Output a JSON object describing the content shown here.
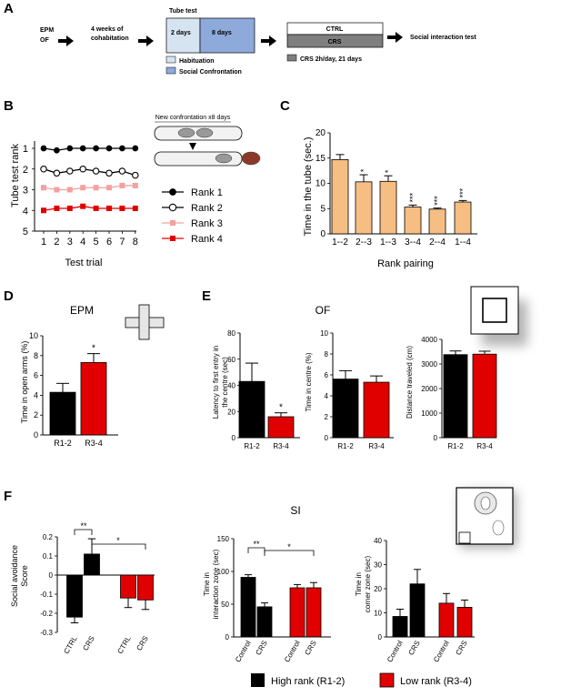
{
  "colors": {
    "black": "#000000",
    "red": "#e00000",
    "orange": "#f6be82",
    "pink": "#f4a0a0",
    "lightblue": "#d6e4f2",
    "blue": "#8eaadb",
    "darkgray": "#7f7f7f"
  },
  "panelA": {
    "letter": "A",
    "step1": [
      "EPM",
      "OF"
    ],
    "step2": [
      "4 weeks of",
      "cohabitation"
    ],
    "tube_title": "Tube test",
    "box_hab": "2 days",
    "box_conf": "8 days",
    "legend_hab": "Habituation",
    "legend_conf": "Social Confrontation",
    "ctrl": "CTRL",
    "crs": "CRS",
    "crs_note": "CRS 2h/day, 21 days",
    "final": "Social interaction test"
  },
  "panelB": {
    "letter": "B",
    "ylabel": "Tube test rank",
    "xlabel": "Test trial",
    "new_conf": "New confrontation x8 days",
    "legend": [
      "Rank 1",
      "Rank 2",
      "Rank 3",
      "Rank 4"
    ]
  },
  "panelC": {
    "letter": "C",
    "ylabel": "Time in the tube (sec.)",
    "xlabel": "Rank pairing"
  },
  "panelD": {
    "letter": "D",
    "title": "EPM",
    "ylabel": "Time in open arms (%)"
  },
  "panelE": {
    "letter": "E",
    "title": "OF",
    "ylabels": [
      "Latency to first entry in",
      "the centre (sec)",
      "Time in centre (%)",
      "Distance traveled (cm)"
    ]
  },
  "panelF": {
    "letter": "F",
    "title": "SI",
    "ylabels": [
      "Social avoidance",
      "Score",
      "Time in",
      "interaction zone (sec)",
      "Time in",
      "corner zone (sec)"
    ],
    "sig": [
      "**",
      "*",
      "**",
      "*"
    ]
  },
  "legend_bottom": {
    "high": "High rank (R1-2)",
    "low": "Low rank (R3-4)"
  },
  "chart_data": [
    {
      "id": "B",
      "type": "line",
      "title": "",
      "xlabel": "Test trial",
      "ylabel": "Tube test rank",
      "x": [
        1,
        2,
        3,
        4,
        5,
        6,
        7,
        8
      ],
      "ylim": [
        5,
        1
      ],
      "yticks": [
        1,
        2,
        3,
        4,
        5
      ],
      "series": [
        {
          "name": "Rank 1",
          "values": [
            1.0,
            1.1,
            1.0,
            1.0,
            1.0,
            1.0,
            1.0,
            1.0
          ]
        },
        {
          "name": "Rank 2",
          "values": [
            2.0,
            2.2,
            2.1,
            2.0,
            2.1,
            2.2,
            2.1,
            2.3
          ]
        },
        {
          "name": "Rank 3",
          "values": [
            2.9,
            3.0,
            3.0,
            2.9,
            2.9,
            2.9,
            2.8,
            2.8
          ]
        },
        {
          "name": "Rank 4",
          "values": [
            4.0,
            3.9,
            3.9,
            3.8,
            3.9,
            3.9,
            3.9,
            3.9
          ]
        }
      ]
    },
    {
      "id": "C",
      "type": "bar",
      "xlabel": "Rank pairing",
      "ylabel": "Time in the tube (sec.)",
      "categories": [
        "1--2",
        "2--3",
        "1--3",
        "3--4",
        "2--4",
        "1--4"
      ],
      "values": [
        14.7,
        10.3,
        10.4,
        5.3,
        4.9,
        6.3
      ],
      "errors": [
        1.0,
        1.4,
        1.1,
        0.4,
        0.2,
        0.3
      ],
      "significance": [
        "",
        "*",
        "*",
        "***",
        "***",
        "***"
      ],
      "ylim": [
        0,
        20
      ],
      "yticks": [
        0,
        5,
        10,
        15,
        20
      ]
    },
    {
      "id": "D",
      "type": "bar",
      "title": "EPM",
      "ylabel": "Time in open arms (%)",
      "categories": [
        "R1-2",
        "R3-4"
      ],
      "values": [
        4.3,
        7.3
      ],
      "errors": [
        0.9,
        0.9
      ],
      "significance": [
        "",
        "*"
      ],
      "ylim": [
        0,
        10
      ],
      "yticks": [
        0,
        2,
        4,
        6,
        8,
        10
      ],
      "yticklabels": [
        "0",
        "2",
        "4",
        "6",
        "8",
        "10"
      ]
    },
    {
      "id": "E1",
      "type": "bar",
      "ylabel": "Latency to first entry in the centre (sec)",
      "categories": [
        "R1-2",
        "R3-4"
      ],
      "values": [
        43,
        16
      ],
      "errors": [
        14,
        3
      ],
      "significance": [
        "",
        "*"
      ],
      "ylim": [
        0,
        80
      ],
      "yticks": [
        0,
        20,
        40,
        60,
        80
      ]
    },
    {
      "id": "E2",
      "type": "bar",
      "ylabel": "Time in centre (%)",
      "categories": [
        "R1-2",
        "R3-4"
      ],
      "values": [
        5.6,
        5.3
      ],
      "errors": [
        0.8,
        0.6
      ],
      "ylim": [
        0,
        10
      ],
      "yticks": [
        0,
        2,
        4,
        6,
        8,
        10
      ]
    },
    {
      "id": "E3",
      "type": "bar",
      "ylabel": "Distance traveled (cm)",
      "categories": [
        "R1-2",
        "R3-4"
      ],
      "values": [
        3380,
        3400
      ],
      "errors": [
        150,
        120
      ],
      "ylim": [
        0,
        4000
      ],
      "yticks": [
        0,
        1000,
        2000,
        3000,
        4000
      ]
    },
    {
      "id": "F1",
      "type": "bar",
      "ylabel": "Social avoidance Score",
      "categories": [
        "CTRL",
        "CRS",
        "CTRL",
        "CRS"
      ],
      "values": [
        -0.22,
        0.11,
        -0.12,
        -0.13
      ],
      "errors": [
        0.03,
        0.08,
        0.05,
        0.05
      ],
      "ylim": [
        -0.3,
        0.2
      ],
      "yticks": [
        -0.3,
        -0.2,
        -0.1,
        0,
        0.1,
        0.2
      ]
    },
    {
      "id": "F2",
      "type": "bar",
      "ylabel": "Time in interaction zone (sec)",
      "categories": [
        "Control",
        "CRS",
        "Control",
        "CRS"
      ],
      "values": [
        91,
        46,
        75,
        75
      ],
      "errors": [
        4,
        6,
        5,
        8
      ],
      "ylim": [
        0,
        150
      ],
      "yticks": [
        0,
        50,
        100,
        150
      ]
    },
    {
      "id": "F3",
      "type": "bar",
      "ylabel": "Time in corner zone (sec)",
      "categories": [
        "Control",
        "CRS",
        "Control",
        "CRS"
      ],
      "values": [
        8.5,
        22,
        14,
        12.3
      ],
      "errors": [
        3,
        6,
        4,
        3
      ],
      "ylim": [
        0,
        40
      ],
      "yticks": [
        0,
        10,
        20,
        30,
        40
      ]
    }
  ]
}
